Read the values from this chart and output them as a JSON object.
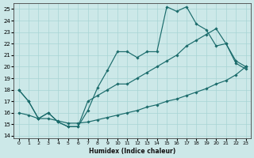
{
  "xlabel": "Humidex (Indice chaleur)",
  "bg_color": "#cce8e8",
  "grid_color": "#a8d4d4",
  "line_color": "#1a6b6b",
  "xlim": [
    -0.5,
    23.5
  ],
  "ylim": [
    13.8,
    25.5
  ],
  "xticks": [
    0,
    1,
    2,
    3,
    4,
    5,
    6,
    7,
    8,
    9,
    10,
    11,
    12,
    13,
    14,
    15,
    16,
    17,
    18,
    19,
    20,
    21,
    22,
    23
  ],
  "yticks": [
    14,
    15,
    16,
    17,
    18,
    19,
    20,
    21,
    22,
    23,
    24,
    25
  ],
  "series": [
    {
      "x": [
        0,
        1,
        2,
        3,
        4,
        5,
        6,
        7,
        8,
        9,
        10,
        11,
        12,
        13,
        14,
        15,
        16,
        17,
        18,
        19,
        20,
        21,
        22,
        23
      ],
      "y": [
        18,
        17,
        15.5,
        16,
        15.2,
        14.8,
        14.8,
        16.2,
        18.2,
        19.7,
        21.3,
        21.3,
        20.8,
        21.3,
        21.3,
        25.2,
        24.8,
        25.2,
        23.7,
        23.2,
        21.8,
        22.0,
        20.3,
        19.8
      ]
    },
    {
      "x": [
        0,
        1,
        2,
        3,
        4,
        5,
        6,
        7,
        8,
        9,
        10,
        11,
        12,
        13,
        14,
        15,
        16,
        17,
        18,
        19,
        20,
        21,
        22,
        23
      ],
      "y": [
        16.0,
        15.8,
        15.5,
        15.5,
        15.3,
        15.1,
        15.1,
        15.2,
        15.4,
        15.6,
        15.8,
        16.0,
        16.2,
        16.5,
        16.7,
        17.0,
        17.2,
        17.5,
        17.8,
        18.1,
        18.5,
        18.8,
        19.3,
        20.0
      ]
    },
    {
      "x": [
        0,
        1,
        2,
        3,
        4,
        5,
        6,
        7,
        8,
        9,
        10,
        11,
        12,
        13,
        14,
        15,
        16,
        17,
        18,
        19,
        20,
        21,
        22,
        23
      ],
      "y": [
        18.0,
        17.0,
        15.5,
        16.0,
        15.2,
        14.8,
        14.8,
        17.0,
        17.5,
        18.0,
        18.5,
        18.5,
        19.0,
        19.5,
        20.0,
        20.5,
        21.0,
        21.8,
        22.3,
        22.8,
        23.3,
        22.0,
        20.5,
        20.0
      ]
    }
  ]
}
